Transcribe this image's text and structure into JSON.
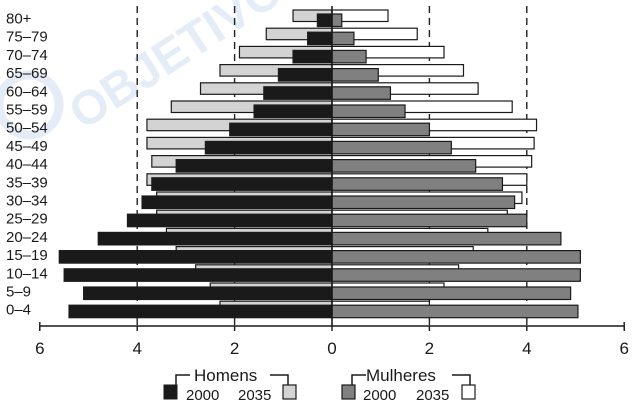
{
  "chart_data": {
    "type": "bar",
    "categories": [
      "80+",
      "75–79",
      "70–74",
      "65–69",
      "60–64",
      "55–59",
      "50–54",
      "45–49",
      "40–44",
      "35–39",
      "30–34",
      "25–29",
      "20–24",
      "15–19",
      "10–14",
      "5–9",
      "0–4"
    ],
    "groups": {
      "men": "Homens",
      "women": "Mulheres"
    },
    "years": {
      "y2000": "2000",
      "y2035": "2035"
    },
    "series": [
      {
        "name": "Homens 2000",
        "side": "men",
        "year": "2000",
        "fill": "#1a1a1a",
        "values": [
          0.3,
          0.5,
          0.8,
          1.1,
          1.4,
          1.6,
          2.1,
          2.6,
          3.2,
          3.7,
          3.9,
          4.2,
          4.8,
          5.6,
          5.5,
          5.1,
          5.4
        ]
      },
      {
        "name": "Homens 2035",
        "side": "men",
        "year": "2035",
        "fill": "#d3d3d3",
        "values": [
          0.8,
          1.35,
          1.9,
          2.3,
          2.7,
          3.3,
          3.8,
          3.8,
          3.7,
          3.8,
          3.6,
          3.6,
          3.4,
          3.2,
          2.8,
          2.5,
          2.3
        ]
      },
      {
        "name": "Mulheres 2000",
        "side": "women",
        "year": "2000",
        "fill": "#808080",
        "values": [
          0.2,
          0.45,
          0.7,
          0.95,
          1.2,
          1.5,
          2.0,
          2.45,
          2.95,
          3.5,
          3.75,
          4.0,
          4.7,
          5.1,
          5.1,
          4.9,
          5.05
        ]
      },
      {
        "name": "Mulheres 2035",
        "side": "women",
        "year": "2035",
        "fill": "#ffffff",
        "values": [
          1.15,
          1.75,
          2.3,
          2.7,
          3.0,
          3.7,
          4.2,
          4.15,
          4.1,
          4.0,
          3.9,
          3.6,
          3.2,
          2.9,
          2.6,
          2.3,
          2.0
        ]
      }
    ],
    "x_ticks": [
      "6",
      "4",
      "2",
      "0",
      "2",
      "4",
      "6"
    ],
    "xlim": [
      -6,
      6
    ],
    "gridlines_at": [
      -4,
      -2,
      2,
      4
    ],
    "legend_position": "bottom-center",
    "watermark": "OBJETIVO"
  }
}
